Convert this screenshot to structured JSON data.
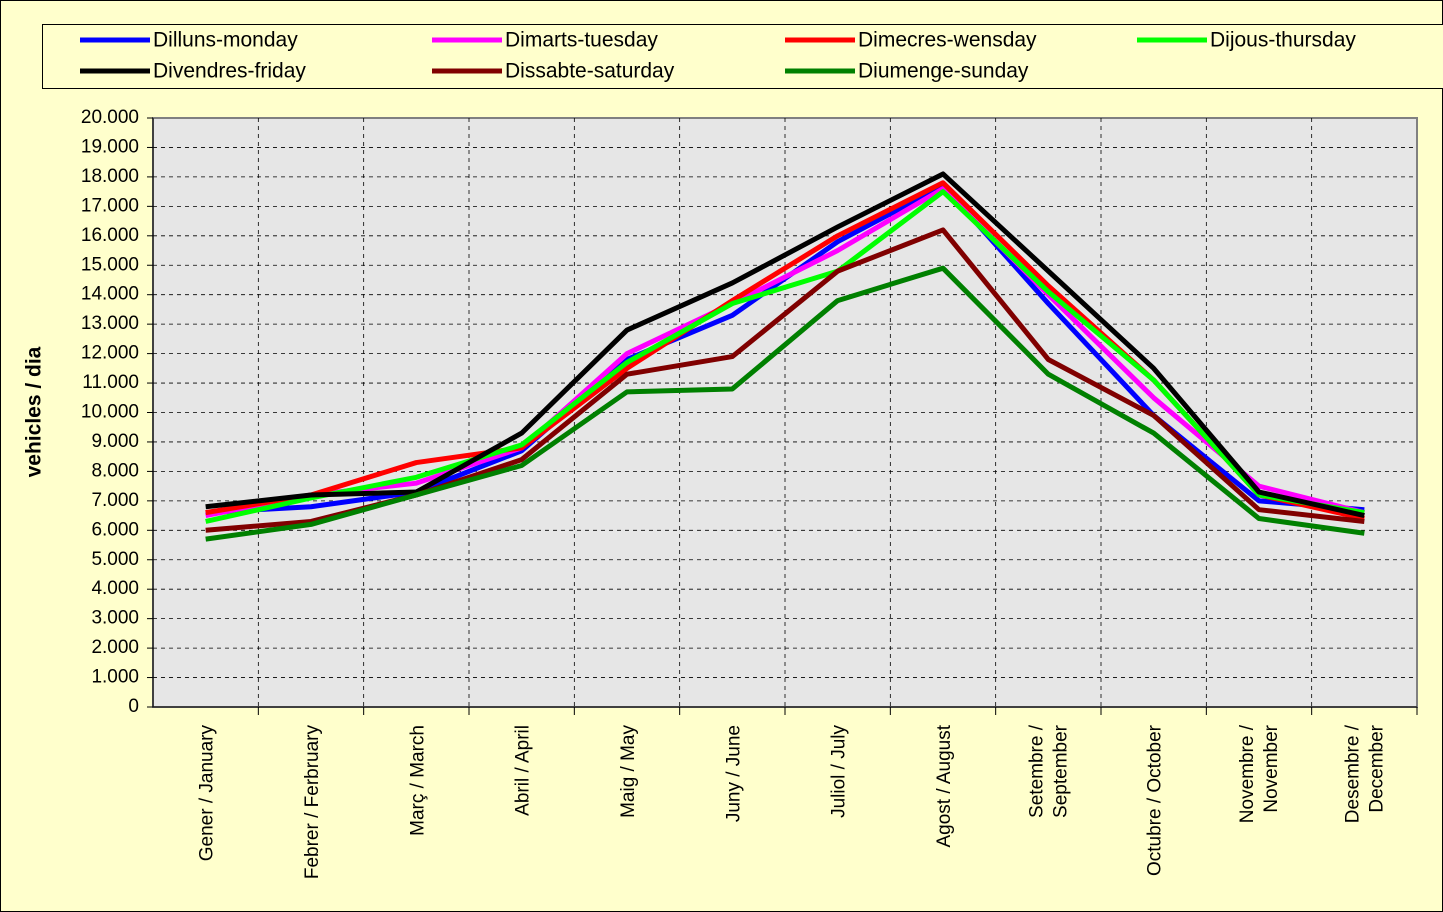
{
  "chart_data": {
    "type": "line",
    "y_label": "vehicles / dia",
    "categories": [
      "Gener / January",
      "Febrer / Ferbruary",
      "Març / March",
      "Abril / April",
      "Maig / May",
      "Juny / June",
      "Juliol / July",
      "Agost / August",
      "Setembre / September",
      "Octubre / October",
      "Novembre / November",
      "Desembre / December"
    ],
    "series": [
      {
        "name": "Dilluns-monday",
        "color": "#0000ff",
        "values": [
          6600,
          6800,
          7300,
          8700,
          11800,
          13300,
          15800,
          17700,
          13700,
          9900,
          7000,
          6700
        ]
      },
      {
        "name": "Dimarts-tuesday",
        "color": "#ff00ff",
        "values": [
          6500,
          7200,
          7600,
          8800,
          12000,
          13700,
          15500,
          17600,
          14000,
          10500,
          7500,
          6600
        ]
      },
      {
        "name": "Dimecres-wensday",
        "color": "#ff0000",
        "values": [
          6600,
          7200,
          8300,
          8800,
          11500,
          13800,
          16000,
          17800,
          14300,
          11100,
          7200,
          6400
        ]
      },
      {
        "name": "Dijous-thursday",
        "color": "#00ff00",
        "values": [
          6300,
          7100,
          7800,
          8900,
          11700,
          13700,
          14800,
          17500,
          14100,
          11100,
          7200,
          6600
        ]
      },
      {
        "name": "Divendres-friday",
        "color": "#000000",
        "values": [
          6800,
          7200,
          7300,
          9300,
          12800,
          14400,
          16300,
          18100,
          14800,
          11500,
          7300,
          6500
        ]
      },
      {
        "name": "Dissabte-saturday",
        "color": "#800000",
        "values": [
          6000,
          6300,
          7200,
          8400,
          11300,
          11900,
          14800,
          16200,
          11800,
          9900,
          6700,
          6300
        ]
      },
      {
        "name": "Diumenge-sunday",
        "color": "#008000",
        "values": [
          5700,
          6200,
          7200,
          8200,
          10700,
          10800,
          13800,
          14900,
          11300,
          9300,
          6400,
          5900
        ]
      }
    ],
    "ylim": [
      0,
      20000
    ],
    "yticks": [
      0,
      {
        "value": 1000,
        "label": "1.000"
      },
      {
        "value": 2000,
        "label": "2.000"
      },
      {
        "value": 3000,
        "label": "3.000"
      },
      {
        "value": 4000,
        "label": "4.000"
      },
      {
        "value": 5000,
        "label": "5.000"
      },
      {
        "value": 6000,
        "label": "6.000"
      },
      {
        "value": 7000,
        "label": "7.000"
      },
      {
        "value": 8000,
        "label": "8.000"
      },
      {
        "value": 9000,
        "label": "9.000"
      },
      {
        "value": 10000,
        "label": "10.000"
      },
      {
        "value": 11000,
        "label": "11.000"
      },
      {
        "value": 12000,
        "label": "12.000"
      },
      {
        "value": 13000,
        "label": "13.000"
      },
      {
        "value": 14000,
        "label": "14.000"
      },
      {
        "value": 15000,
        "label": "15.000"
      },
      {
        "value": 16000,
        "label": "16.000"
      },
      {
        "value": 17000,
        "label": "17.000"
      },
      {
        "value": 18000,
        "label": "18.000"
      },
      {
        "value": 19000,
        "label": "19.000"
      },
      {
        "value": 20000,
        "label": "20.000"
      }
    ],
    "grid": true
  }
}
